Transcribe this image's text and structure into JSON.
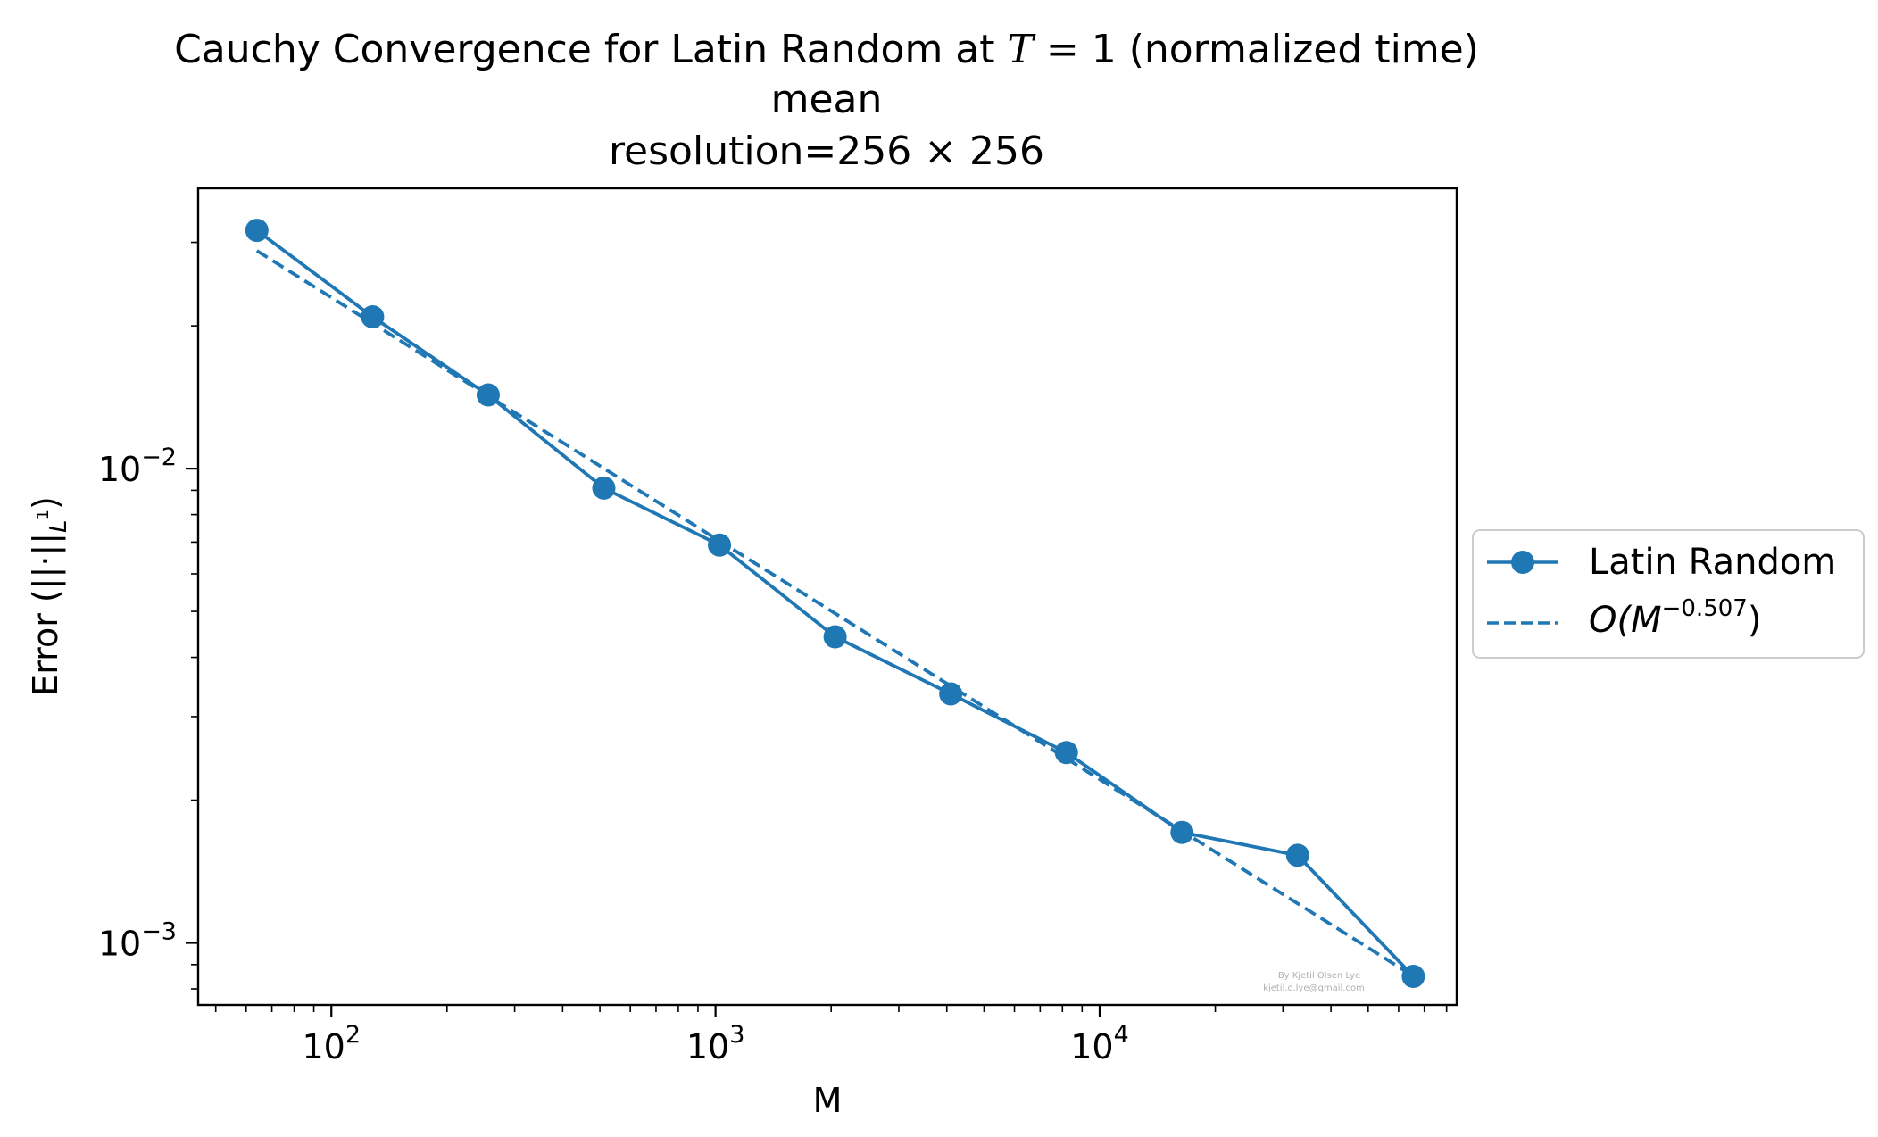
{
  "chart_data": {
    "type": "line",
    "title": {
      "line1_prefix": "Cauchy Convergence for Latin Random at ",
      "line1_var": "T",
      "line1_suffix": " = 1 (normalized time)",
      "line2": "mean",
      "line3": "resolution=256 × 256"
    },
    "xlabel": "M",
    "ylabel": "Error (||·||_L1)",
    "ylabel_main": "Error (||",
    "ylabel_dot": "·",
    "ylabel_sub": "L",
    "ylabel_sup": "1",
    "ylabel_close": ")",
    "xscale": "log",
    "yscale": "log",
    "xlim": [
      45,
      85000
    ],
    "ylim": [
      0.00074,
      0.039
    ],
    "x_ticks": [
      {
        "value": 100,
        "base": "10",
        "exp": "2"
      },
      {
        "value": 1000,
        "base": "10",
        "exp": "3"
      },
      {
        "value": 10000,
        "base": "10",
        "exp": "4"
      }
    ],
    "y_ticks": [
      {
        "value": 0.01,
        "base": "10",
        "exp": "−2"
      },
      {
        "value": 0.001,
        "base": "10",
        "exp": "−3"
      }
    ],
    "grid": false,
    "legend_placement": "outside-right",
    "series": [
      {
        "name": "Latin Random",
        "style": "solid-with-markers",
        "color": "#1f77b4",
        "x": [
          64,
          128,
          256,
          512,
          1024,
          2048,
          4096,
          8192,
          16384,
          32768,
          65536
        ],
        "y": [
          0.0318,
          0.0209,
          0.0143,
          0.0091,
          0.0069,
          0.00442,
          0.00335,
          0.00252,
          0.00171,
          0.00153,
          0.00085
        ]
      },
      {
        "name": "O(M^-0.507)",
        "style": "dashed",
        "color": "#1f77b4",
        "x": [
          64,
          65536
        ],
        "y": [
          0.0288,
          0.000851
        ]
      }
    ],
    "legend": {
      "entries": [
        {
          "label": "Latin Random"
        },
        {
          "label_prefix": "O(M",
          "label_exp": "−0.507",
          "label_suffix": ")"
        }
      ]
    },
    "watermark": {
      "line1": "By Kjetil Olsen Lye",
      "line2": "kjetil.o.lye@gmail.com"
    }
  }
}
